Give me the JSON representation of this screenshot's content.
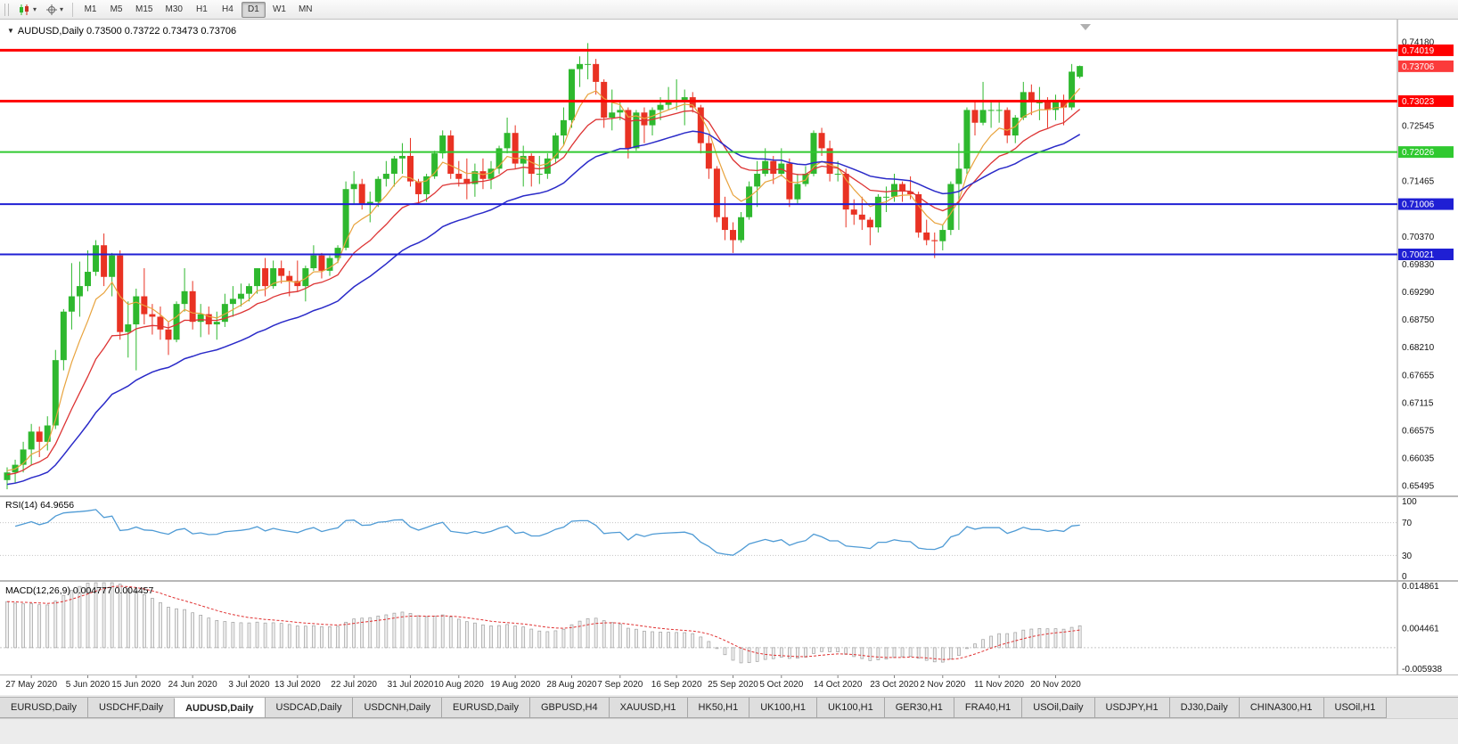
{
  "icons": {
    "collapse_arrow": "▼",
    "caret": "▾"
  },
  "toolbar": {
    "timeframes": [
      {
        "label": "M1"
      },
      {
        "label": "M5"
      },
      {
        "label": "M15"
      },
      {
        "label": "M30"
      },
      {
        "label": "H1"
      },
      {
        "label": "H4"
      },
      {
        "label": "D1",
        "active": true
      },
      {
        "label": "W1"
      },
      {
        "label": "MN"
      }
    ]
  },
  "tabs": {
    "items": [
      {
        "label": "EURUSD,Daily"
      },
      {
        "label": "USDCHF,Daily"
      },
      {
        "label": "AUDUSD,Daily",
        "active": true
      },
      {
        "label": "USDCAD,Daily"
      },
      {
        "label": "USDCNH,Daily"
      },
      {
        "label": "EURUSD,Daily"
      },
      {
        "label": "GBPUSD,H4"
      },
      {
        "label": "XAUUSD,H1"
      },
      {
        "label": "HK50,H1"
      },
      {
        "label": "UK100,H1"
      },
      {
        "label": "UK100,H1"
      },
      {
        "label": "GER30,H1"
      },
      {
        "label": "FRA40,H1"
      },
      {
        "label": "USOil,Daily"
      },
      {
        "label": "USDJPY,H1"
      },
      {
        "label": "DJ30,Daily"
      },
      {
        "label": "CHINA300,H1"
      },
      {
        "label": "USOil,H1"
      }
    ]
  },
  "chart_data": {
    "type": "candlestick",
    "symbol_title": "AUDUSD,Daily",
    "ohlc_label": "0.73500 0.73722 0.73473 0.73706",
    "up_color": "#2eb82e",
    "down_color": "#e93223",
    "ma_colors": {
      "fast": "#e8a33d",
      "medium": "#dd3434",
      "slow": "#2a2ac8"
    },
    "price_scale": {
      "top": 0.7462,
      "bottom": 0.653
    },
    "price_axis_labels": [
      "0.74180",
      "0.73640",
      "0.73095",
      "0.72545",
      "0.72010",
      "0.71465",
      "0.70920",
      "0.70370",
      "0.69830",
      "0.69290",
      "0.68750",
      "0.68210",
      "0.67655",
      "0.67115",
      "0.66575",
      "0.66035",
      "0.65495"
    ],
    "hlines": [
      {
        "value": "0.74019",
        "color": "#ff0000",
        "width": 3
      },
      {
        "value": "0.73023",
        "color": "#ff0000",
        "width": 3
      },
      {
        "value": "0.72026",
        "color": "#30c930",
        "width": 2
      },
      {
        "value": "0.71006",
        "color": "#1f1fd4",
        "width": 2
      },
      {
        "value": "0.70021",
        "color": "#1f1fd4",
        "width": 2
      }
    ],
    "current_price": {
      "value": "0.73706",
      "color": "#fb3b3b"
    },
    "date_ticks": [
      {
        "i": 3,
        "label": "27 May 2020"
      },
      {
        "i": 10,
        "label": "5 Jun 2020"
      },
      {
        "i": 16,
        "label": "15 Jun 2020"
      },
      {
        "i": 23,
        "label": "24 Jun 2020"
      },
      {
        "i": 30,
        "label": "3 Jul 2020"
      },
      {
        "i": 36,
        "label": "13 Jul 2020"
      },
      {
        "i": 43,
        "label": "22 Jul 2020"
      },
      {
        "i": 50,
        "label": "31 Jul 2020"
      },
      {
        "i": 56,
        "label": "10 Aug 2020"
      },
      {
        "i": 63,
        "label": "19 Aug 2020"
      },
      {
        "i": 70,
        "label": "28 Aug 2020"
      },
      {
        "i": 76,
        "label": "7 Sep 2020"
      },
      {
        "i": 83,
        "label": "16 Sep 2020"
      },
      {
        "i": 90,
        "label": "25 Sep 2020"
      },
      {
        "i": 96,
        "label": "5 Oct 2020"
      },
      {
        "i": 103,
        "label": "14 Oct 2020"
      },
      {
        "i": 110,
        "label": "23 Oct 2020"
      },
      {
        "i": 116,
        "label": "2 Nov 2020"
      },
      {
        "i": 123,
        "label": "11 Nov 2020"
      },
      {
        "i": 130,
        "label": "20 Nov 2020"
      }
    ],
    "rsi": {
      "label": "RSI(14) 64.9656",
      "color": "#4f9bd5",
      "levels": [
        70,
        30
      ],
      "axis_labels": [
        100,
        70,
        30,
        0
      ]
    },
    "macd": {
      "label": "MACD(12,26,9) 0.004777 0.004457",
      "range": {
        "max": 0.014861,
        "min": -0.005938
      },
      "axis_labels": [
        "0.014861",
        "0.004461",
        "-0.005938"
      ],
      "hist_fill": "#f0f0f0",
      "hist_stroke": "#9f9f9f",
      "signal_color": "#e03030"
    },
    "candles": [
      [
        0.656,
        0.6585,
        0.6542,
        0.6575
      ],
      [
        0.6575,
        0.66,
        0.6555,
        0.659
      ],
      [
        0.659,
        0.6635,
        0.6575,
        0.662
      ],
      [
        0.662,
        0.667,
        0.659,
        0.6655
      ],
      [
        0.6655,
        0.6665,
        0.6605,
        0.6635
      ],
      [
        0.6635,
        0.6685,
        0.6618,
        0.6667
      ],
      [
        0.6667,
        0.6815,
        0.666,
        0.6795
      ],
      [
        0.6795,
        0.6895,
        0.6775,
        0.689
      ],
      [
        0.689,
        0.6985,
        0.6855,
        0.692
      ],
      [
        0.692,
        0.6988,
        0.688,
        0.694
      ],
      [
        0.694,
        0.701,
        0.693,
        0.6968
      ],
      [
        0.6968,
        0.703,
        0.696,
        0.702
      ],
      [
        0.702,
        0.7043,
        0.694,
        0.6958
      ],
      [
        0.6958,
        0.7005,
        0.692,
        0.7
      ],
      [
        0.7,
        0.701,
        0.6835,
        0.685
      ],
      [
        0.685,
        0.691,
        0.68,
        0.6865
      ],
      [
        0.6865,
        0.6935,
        0.6775,
        0.692
      ],
      [
        0.692,
        0.6975,
        0.6865,
        0.6885
      ],
      [
        0.6885,
        0.6905,
        0.6845,
        0.688
      ],
      [
        0.688,
        0.69,
        0.6835,
        0.6855
      ],
      [
        0.6855,
        0.687,
        0.6805,
        0.6835
      ],
      [
        0.6835,
        0.691,
        0.683,
        0.6905
      ],
      [
        0.6905,
        0.6975,
        0.689,
        0.693
      ],
      [
        0.693,
        0.695,
        0.6855,
        0.687
      ],
      [
        0.687,
        0.6905,
        0.684,
        0.6885
      ],
      [
        0.6885,
        0.69,
        0.6845,
        0.6865
      ],
      [
        0.6865,
        0.689,
        0.6835,
        0.687
      ],
      [
        0.687,
        0.6925,
        0.686,
        0.6905
      ],
      [
        0.6905,
        0.694,
        0.688,
        0.6915
      ],
      [
        0.6915,
        0.6945,
        0.69,
        0.6925
      ],
      [
        0.6925,
        0.6945,
        0.691,
        0.694
      ],
      [
        0.694,
        0.6975,
        0.6925,
        0.6975
      ],
      [
        0.6975,
        0.6995,
        0.692,
        0.694
      ],
      [
        0.694,
        0.699,
        0.6935,
        0.6975
      ],
      [
        0.6975,
        0.699,
        0.6945,
        0.696
      ],
      [
        0.696,
        0.697,
        0.692,
        0.695
      ],
      [
        0.695,
        0.699,
        0.693,
        0.694
      ],
      [
        0.694,
        0.698,
        0.691,
        0.6975
      ],
      [
        0.6975,
        0.702,
        0.697,
        0.7
      ],
      [
        0.7,
        0.7005,
        0.6955,
        0.697
      ],
      [
        0.697,
        0.7,
        0.696,
        0.6995
      ],
      [
        0.6995,
        0.702,
        0.6985,
        0.7015
      ],
      [
        0.7015,
        0.7145,
        0.701,
        0.713
      ],
      [
        0.713,
        0.7165,
        0.71,
        0.714
      ],
      [
        0.714,
        0.715,
        0.709,
        0.71
      ],
      [
        0.71,
        0.7125,
        0.7065,
        0.7105
      ],
      [
        0.7105,
        0.7155,
        0.7095,
        0.715
      ],
      [
        0.715,
        0.7185,
        0.7135,
        0.716
      ],
      [
        0.716,
        0.7195,
        0.7135,
        0.719
      ],
      [
        0.719,
        0.722,
        0.716,
        0.7195
      ],
      [
        0.7195,
        0.723,
        0.7135,
        0.7145
      ],
      [
        0.7145,
        0.715,
        0.71,
        0.712
      ],
      [
        0.712,
        0.716,
        0.7105,
        0.7155
      ],
      [
        0.7155,
        0.7205,
        0.715,
        0.72
      ],
      [
        0.72,
        0.7245,
        0.719,
        0.7235
      ],
      [
        0.7235,
        0.7245,
        0.715,
        0.716
      ],
      [
        0.716,
        0.7185,
        0.7135,
        0.715
      ],
      [
        0.715,
        0.719,
        0.711,
        0.714
      ],
      [
        0.714,
        0.718,
        0.7115,
        0.7165
      ],
      [
        0.7165,
        0.719,
        0.713,
        0.715
      ],
      [
        0.715,
        0.7185,
        0.713,
        0.717
      ],
      [
        0.717,
        0.7215,
        0.716,
        0.721
      ],
      [
        0.721,
        0.727,
        0.72,
        0.724
      ],
      [
        0.724,
        0.7255,
        0.717,
        0.718
      ],
      [
        0.718,
        0.7215,
        0.7135,
        0.7195
      ],
      [
        0.7195,
        0.72,
        0.7135,
        0.716
      ],
      [
        0.716,
        0.7195,
        0.714,
        0.716
      ],
      [
        0.716,
        0.72,
        0.715,
        0.719
      ],
      [
        0.719,
        0.724,
        0.718,
        0.7235
      ],
      [
        0.7235,
        0.729,
        0.7215,
        0.7265
      ],
      [
        0.7265,
        0.7365,
        0.725,
        0.7365
      ],
      [
        0.7365,
        0.739,
        0.733,
        0.7375
      ],
      [
        0.7375,
        0.7416,
        0.7345,
        0.7375
      ],
      [
        0.7375,
        0.7385,
        0.7315,
        0.734
      ],
      [
        0.734,
        0.7345,
        0.725,
        0.727
      ],
      [
        0.727,
        0.7325,
        0.7245,
        0.728
      ],
      [
        0.728,
        0.73,
        0.7265,
        0.7285
      ],
      [
        0.7285,
        0.729,
        0.719,
        0.721
      ],
      [
        0.721,
        0.7285,
        0.7205,
        0.728
      ],
      [
        0.728,
        0.729,
        0.722,
        0.7255
      ],
      [
        0.7255,
        0.729,
        0.7235,
        0.7285
      ],
      [
        0.7285,
        0.731,
        0.7265,
        0.7295
      ],
      [
        0.7295,
        0.733,
        0.7285,
        0.73
      ],
      [
        0.73,
        0.7345,
        0.7285,
        0.7305
      ],
      [
        0.7305,
        0.7325,
        0.7255,
        0.731
      ],
      [
        0.731,
        0.732,
        0.728,
        0.729
      ],
      [
        0.729,
        0.7295,
        0.72,
        0.722
      ],
      [
        0.722,
        0.7235,
        0.715,
        0.717
      ],
      [
        0.717,
        0.7175,
        0.7065,
        0.7075
      ],
      [
        0.7075,
        0.7115,
        0.703,
        0.705
      ],
      [
        0.705,
        0.7065,
        0.7005,
        0.703
      ],
      [
        0.703,
        0.7085,
        0.7025,
        0.7075
      ],
      [
        0.7075,
        0.7145,
        0.707,
        0.7135
      ],
      [
        0.7135,
        0.7185,
        0.7095,
        0.716
      ],
      [
        0.716,
        0.721,
        0.7155,
        0.7185
      ],
      [
        0.7185,
        0.7195,
        0.714,
        0.716
      ],
      [
        0.716,
        0.721,
        0.7155,
        0.718
      ],
      [
        0.718,
        0.719,
        0.7095,
        0.711
      ],
      [
        0.711,
        0.716,
        0.71,
        0.714
      ],
      [
        0.714,
        0.7175,
        0.7135,
        0.716
      ],
      [
        0.716,
        0.7245,
        0.7155,
        0.724
      ],
      [
        0.724,
        0.725,
        0.7195,
        0.721
      ],
      [
        0.721,
        0.7225,
        0.7145,
        0.716
      ],
      [
        0.716,
        0.7185,
        0.7145,
        0.716
      ],
      [
        0.716,
        0.717,
        0.7055,
        0.709
      ],
      [
        0.709,
        0.711,
        0.706,
        0.708
      ],
      [
        0.708,
        0.7115,
        0.705,
        0.707
      ],
      [
        0.707,
        0.7075,
        0.702,
        0.7055
      ],
      [
        0.7055,
        0.712,
        0.7045,
        0.7115
      ],
      [
        0.7115,
        0.7135,
        0.7085,
        0.7115
      ],
      [
        0.7115,
        0.716,
        0.7105,
        0.714
      ],
      [
        0.714,
        0.7145,
        0.7105,
        0.7125
      ],
      [
        0.7125,
        0.7155,
        0.711,
        0.712
      ],
      [
        0.712,
        0.7125,
        0.7035,
        0.7045
      ],
      [
        0.7045,
        0.707,
        0.702,
        0.703
      ],
      [
        0.703,
        0.7045,
        0.6995,
        0.7028
      ],
      [
        0.7028,
        0.706,
        0.701,
        0.705
      ],
      [
        0.705,
        0.7145,
        0.704,
        0.714
      ],
      [
        0.714,
        0.722,
        0.705,
        0.717
      ],
      [
        0.717,
        0.729,
        0.716,
        0.7285
      ],
      [
        0.7285,
        0.73,
        0.7235,
        0.726
      ],
      [
        0.726,
        0.734,
        0.7255,
        0.7285
      ],
      [
        0.7285,
        0.73,
        0.725,
        0.7285
      ],
      [
        0.7285,
        0.7305,
        0.726,
        0.7285
      ],
      [
        0.7285,
        0.729,
        0.722,
        0.7235
      ],
      [
        0.7235,
        0.7275,
        0.722,
        0.727
      ],
      [
        0.727,
        0.734,
        0.7265,
        0.732
      ],
      [
        0.732,
        0.7335,
        0.7275,
        0.73
      ],
      [
        0.73,
        0.733,
        0.7265,
        0.73
      ],
      [
        0.73,
        0.731,
        0.725,
        0.7285
      ],
      [
        0.7285,
        0.7315,
        0.7265,
        0.73
      ],
      [
        0.73,
        0.7315,
        0.7255,
        0.729
      ],
      [
        0.729,
        0.7375,
        0.7285,
        0.736
      ],
      [
        0.735,
        0.7372,
        0.7347,
        0.7371
      ]
    ]
  }
}
